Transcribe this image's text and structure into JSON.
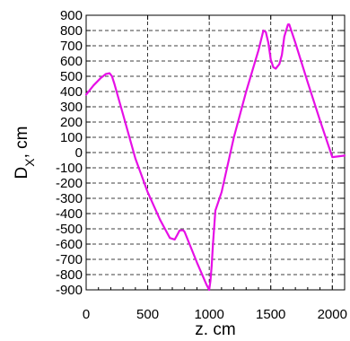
{
  "chart_data": {
    "type": "line",
    "xlabel": "z.  cm",
    "ylabel_main": "D",
    "ylabel_sub": "X",
    "ylabel_unit": ",  cm",
    "xlim": [
      0,
      2100
    ],
    "ylim": [
      -900,
      900
    ],
    "x_ticks": [
      0,
      500,
      1000,
      1500,
      2000
    ],
    "x_tick_labels": [
      "0",
      "500",
      "1000",
      "1500",
      "2000"
    ],
    "y_ticks": [
      900,
      800,
      700,
      600,
      500,
      400,
      300,
      200,
      100,
      0,
      -100,
      -200,
      -300,
      -400,
      -500,
      -600,
      -700,
      -800,
      -900
    ],
    "y_tick_labels": [
      "900",
      "800",
      "700",
      "600",
      "500",
      "400",
      "300",
      "200",
      "100",
      "0",
      "-100",
      "-200",
      "-300",
      "-400",
      "-500",
      "-600",
      "-700",
      "-800",
      "-900"
    ],
    "grid": true,
    "series": [
      {
        "color": "#e60fe6",
        "x": [
          0,
          60,
          120,
          160,
          190,
          210,
          230,
          300,
          400,
          500,
          600,
          680,
          720,
          740,
          760,
          790,
          800,
          900,
          980,
          1000,
          1010,
          1020,
          1030,
          1050,
          1100,
          1200,
          1300,
          1400,
          1440,
          1460,
          1480,
          1500,
          1520,
          1540,
          1570,
          1590,
          1610,
          1640,
          1650,
          1700,
          1800,
          1900,
          2000,
          2100
        ],
        "y": [
          380,
          440,
          490,
          515,
          520,
          500,
          450,
          250,
          -40,
          -260,
          -440,
          -560,
          -570,
          -540,
          -510,
          -510,
          -520,
          -720,
          -870,
          -900,
          -840,
          -740,
          -600,
          -380,
          -260,
          100,
          400,
          670,
          800,
          790,
          720,
          610,
          560,
          550,
          580,
          640,
          760,
          840,
          840,
          720,
          460,
          210,
          -30,
          -20
        ]
      }
    ]
  }
}
